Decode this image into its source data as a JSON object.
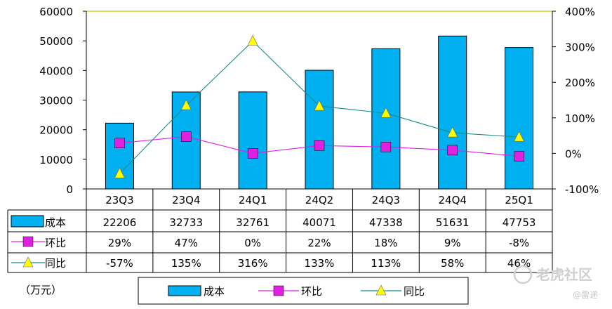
{
  "chart_data": {
    "type": "bar",
    "categories": [
      "23Q3",
      "23Q4",
      "24Q1",
      "24Q2",
      "24Q3",
      "24Q4",
      "25Q1"
    ],
    "unit_label": "（万元）",
    "left_axis": {
      "min": 0,
      "max": 60000,
      "ticks": [
        "0",
        "10000",
        "20000",
        "30000",
        "40000",
        "50000",
        "60000"
      ]
    },
    "right_axis": {
      "min": -100,
      "max": 400,
      "ticks": [
        "-100%",
        "0%",
        "100%",
        "200%",
        "300%",
        "400%"
      ]
    },
    "series": [
      {
        "name": "成本",
        "kind": "bar",
        "axis": "left",
        "color": "#00b0f0",
        "values": [
          22206,
          32733,
          32761,
          40071,
          47338,
          51631,
          47753
        ],
        "labels": [
          "22206",
          "32733",
          "32761",
          "40071",
          "47338",
          "51631",
          "47753"
        ]
      },
      {
        "name": "环比",
        "kind": "line",
        "axis": "right",
        "color": "#e020e0",
        "marker": "square",
        "values": [
          29,
          47,
          0,
          22,
          18,
          9,
          -8
        ],
        "labels": [
          "29%",
          "47%",
          "0%",
          "22%",
          "18%",
          "9%",
          "-8%"
        ]
      },
      {
        "name": "同比",
        "kind": "line",
        "axis": "right",
        "color": "#1a8a8a",
        "marker": "triangle",
        "marker_color": "#ffff00",
        "values": [
          -57,
          135,
          316,
          133,
          113,
          58,
          46
        ],
        "labels": [
          "-57%",
          "135%",
          "316%",
          "133%",
          "113%",
          "58%",
          "46%"
        ]
      }
    ],
    "legend": {
      "position": "bottom",
      "entries": [
        "成本",
        "环比",
        "同比"
      ]
    }
  },
  "watermark": {
    "text": "老虎社区",
    "sub": "@雷递"
  }
}
